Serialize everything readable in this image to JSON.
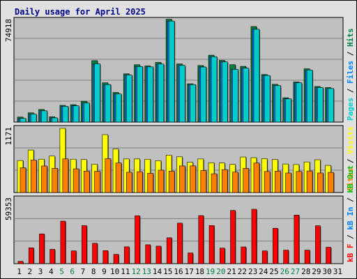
{
  "title": "Daily usage for April 2025",
  "colors": {
    "pages": "#00cccc",
    "files": "#0080ff",
    "hits": "#008040",
    "visits": "#ffff00",
    "sites": "#ff8000",
    "kbf": "#ff0000",
    "kbin": "#0080ff",
    "kbout": "#00c000",
    "panel_bg": "#c0c0c0",
    "frame_bg": "#e0e0e0",
    "weekend_label": "#008040",
    "weekday_label": "#000000"
  },
  "legend": {
    "top": [
      {
        "text": "Pages",
        "color": "#00cccc"
      },
      {
        "text": " / ",
        "color": "#000000"
      },
      {
        "text": "Files",
        "color": "#0080ff"
      },
      {
        "text": " / ",
        "color": "#000000"
      },
      {
        "text": "Hits",
        "color": "#008040"
      }
    ],
    "mid": [
      {
        "text": "Sites",
        "color": "#ff8000"
      },
      {
        "text": " / ",
        "color": "#000000"
      },
      {
        "text": "Visits",
        "color": "#ffff00"
      }
    ],
    "bottom": [
      {
        "text": "kB F",
        "color": "#ff0000"
      },
      {
        "text": " / ",
        "color": "#000000"
      },
      {
        "text": "kB In",
        "color": "#0080ff"
      },
      {
        "text": " / ",
        "color": "#000000"
      },
      {
        "text": "kB Out",
        "color": "#00c000"
      }
    ]
  },
  "chart_data": [
    {
      "type": "bar",
      "panel": "hits",
      "ymax_label": "74918",
      "ylim": [
        0,
        74918
      ],
      "categories": [
        "1",
        "2",
        "3",
        "4",
        "5",
        "6",
        "7",
        "8",
        "9",
        "10",
        "11",
        "12",
        "13",
        "14",
        "15",
        "16",
        "17",
        "18",
        "19",
        "20",
        "21",
        "22",
        "23",
        "24",
        "25",
        "26",
        "27",
        "28",
        "29",
        "30",
        "31"
      ],
      "weekend_days": [
        "5",
        "6",
        "12",
        "13",
        "19",
        "20",
        "26",
        "27"
      ],
      "series": [
        {
          "name": "Hits",
          "values": [
            3700,
            6800,
            9300,
            3900,
            12300,
            12800,
            15300,
            45200,
            28900,
            21800,
            35500,
            42200,
            41300,
            43900,
            75600,
            42800,
            28200,
            41600,
            49200,
            45400,
            42200,
            41000,
            70300,
            35000,
            27800,
            17900,
            29500,
            39200,
            26200,
            25400,
            null
          ]
        },
        {
          "name": "Files",
          "values": [
            2700,
            5800,
            8300,
            3100,
            11600,
            12000,
            14100,
            42900,
            27600,
            20700,
            34600,
            40900,
            40600,
            42700,
            74300,
            41700,
            27600,
            40500,
            48100,
            44300,
            38800,
            39700,
            68300,
            34300,
            26900,
            17100,
            28900,
            38300,
            25400,
            24700,
            null
          ]
        },
        {
          "name": "Pages",
          "values": [
            2700,
            5800,
            8300,
            3100,
            11600,
            12000,
            14100,
            42900,
            27600,
            20700,
            34600,
            40900,
            40600,
            42700,
            74300,
            41700,
            27600,
            40500,
            48100,
            44300,
            38800,
            39700,
            68300,
            34300,
            26900,
            17100,
            28900,
            38300,
            25400,
            24700,
            null
          ]
        }
      ]
    },
    {
      "type": "bar",
      "panel": "visits",
      "ymax_label": "1171",
      "ylim": [
        0,
        1171
      ],
      "categories": [
        "1",
        "2",
        "3",
        "4",
        "5",
        "6",
        "7",
        "8",
        "9",
        "10",
        "11",
        "12",
        "13",
        "14",
        "15",
        "16",
        "17",
        "18",
        "19",
        "20",
        "21",
        "22",
        "23",
        "24",
        "25",
        "26",
        "27",
        "28",
        "29",
        "30",
        "31"
      ],
      "series": [
        {
          "name": "Visits",
          "values": [
            584,
            775,
            608,
            665,
            1171,
            608,
            602,
            517,
            1056,
            794,
            613,
            613,
            607,
            581,
            682,
            652,
            552,
            612,
            544,
            539,
            514,
            648,
            636,
            617,
            603,
            520,
            511,
            558,
            598,
            495,
            null
          ]
        },
        {
          "name": "Sites",
          "values": [
            451,
            594,
            484,
            442,
            614,
            432,
            391,
            388,
            617,
            539,
            370,
            380,
            352,
            407,
            391,
            485,
            486,
            401,
            342,
            418,
            373,
            441,
            538,
            384,
            390,
            356,
            384,
            393,
            357,
            368,
            null
          ]
        }
      ]
    },
    {
      "type": "bar",
      "panel": "kbytes",
      "ymax_label": "59353",
      "ylim": [
        0,
        59353
      ],
      "categories": [
        "1",
        "2",
        "3",
        "4",
        "5",
        "6",
        "7",
        "8",
        "9",
        "10",
        "11",
        "12",
        "13",
        "14",
        "15",
        "16",
        "17",
        "18",
        "19",
        "20",
        "21",
        "22",
        "23",
        "24",
        "25",
        "26",
        "27",
        "28",
        "29",
        "30",
        "31"
      ],
      "series": [
        {
          "name": "kB F",
          "values": [
            2100,
            14500,
            27200,
            13100,
            38900,
            11700,
            34800,
            18600,
            11900,
            8500,
            15400,
            43800,
            17300,
            16000,
            23700,
            37100,
            9800,
            44000,
            34900,
            14200,
            48700,
            15300,
            49800,
            11700,
            32400,
            12400,
            44500,
            12400,
            34700,
            15000,
            null
          ]
        }
      ]
    }
  ]
}
